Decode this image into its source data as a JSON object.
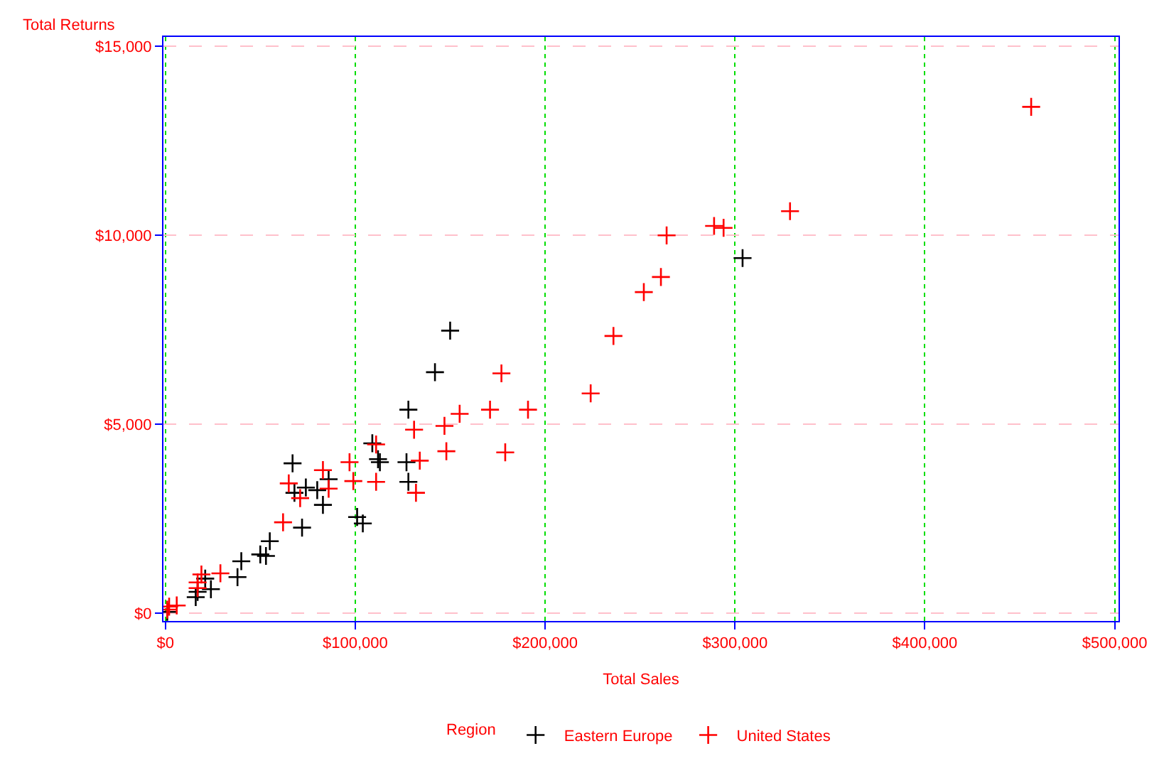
{
  "chart_data": {
    "type": "scatter",
    "xlabel": "Total Sales",
    "ylabel": "Total Returns",
    "legend_title": "Region",
    "legend": "bottom",
    "grid": true,
    "marker": "cross",
    "xlim": [
      -1000,
      502000
    ],
    "ylim": [
      -200,
      15250
    ],
    "xticks": [
      {
        "value": 0,
        "label": "$0"
      },
      {
        "value": 100000,
        "label": "$100,000"
      },
      {
        "value": 200000,
        "label": "$200,000"
      },
      {
        "value": 300000,
        "label": "$300,000"
      },
      {
        "value": 400000,
        "label": "$400,000"
      },
      {
        "value": 500000,
        "label": "$500,000"
      }
    ],
    "yticks": [
      {
        "value": 0,
        "label": "$0"
      },
      {
        "value": 5000,
        "label": "$5,000"
      },
      {
        "value": 10000,
        "label": "$10,000"
      },
      {
        "value": 15000,
        "label": "$15,000"
      }
    ],
    "series": [
      {
        "name": "Eastern Europe",
        "color": "#000000",
        "x": [
          150000,
          142000,
          128000,
          304000,
          109000,
          112000,
          113000,
          127000,
          128000,
          67000,
          68000,
          74000,
          80000,
          86000,
          83000,
          72000,
          101000,
          104000,
          55000,
          50000,
          53000,
          38000,
          40000,
          24000,
          21000,
          17000,
          16000,
          1000
        ],
        "values": [
          7480,
          6380,
          5390,
          9400,
          4500,
          4080,
          4000,
          4000,
          3480,
          3970,
          3190,
          3330,
          3260,
          3550,
          2870,
          2270,
          2550,
          2380,
          1910,
          1560,
          1520,
          960,
          1380,
          640,
          920,
          570,
          430,
          40
        ]
      },
      {
        "name": "United States",
        "color": "#ff0000",
        "x": [
          456000,
          329000,
          294000,
          289000,
          264000,
          261000,
          252000,
          236000,
          177000,
          224000,
          171000,
          191000,
          155000,
          147000,
          131000,
          111000,
          148000,
          179000,
          134000,
          97000,
          83000,
          86000,
          65000,
          71000,
          99000,
          111000,
          132000,
          62000,
          19000,
          29000,
          17000,
          17000,
          6000,
          2000,
          1000
        ],
        "values": [
          13400,
          10640,
          10200,
          10250,
          10000,
          8900,
          8500,
          7340,
          6350,
          5820,
          5390,
          5390,
          5280,
          4960,
          4860,
          4470,
          4290,
          4260,
          4040,
          4000,
          3790,
          3300,
          3440,
          3050,
          3500,
          3480,
          3190,
          2410,
          1030,
          1060,
          670,
          820,
          210,
          180,
          100
        ]
      }
    ]
  }
}
